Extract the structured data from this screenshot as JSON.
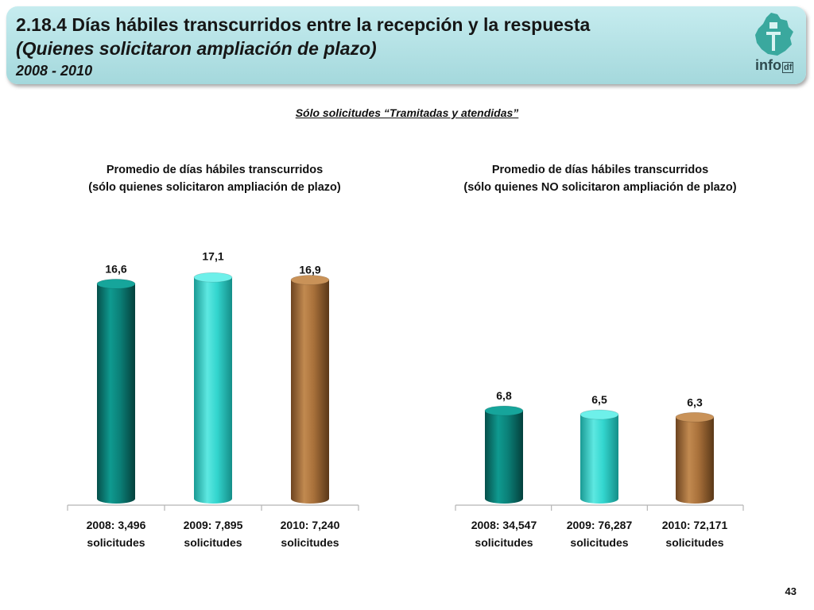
{
  "header": {
    "title": "2.18.4 Días hábiles transcurridos entre la recepción y la respuesta",
    "subtitle": "(Quienes solicitaron ampliación de plazo)",
    "range": "2008 - 2010",
    "logo_text": "info",
    "logo_suffix": "df"
  },
  "section_subtitle": "Sólo solicitudes “Tramitadas y atendidas”",
  "page_number": "43",
  "colors": {
    "teal_dark": "#0b8078",
    "teal_light": "#33d6cf",
    "brown": "#a8703a"
  },
  "chart_data": [
    {
      "type": "bar",
      "title_line1": "Promedio de días hábiles transcurridos",
      "title_line2": "(sólo quienes solicitaron ampliación de plazo)",
      "categories": [
        [
          "2008: 3,496",
          "solicitudes"
        ],
        [
          "2009: 7,895",
          "solicitudes"
        ],
        [
          "2010: 7,240",
          "solicitudes"
        ]
      ],
      "values": [
        16.6,
        17.1,
        16.9
      ],
      "value_labels": [
        "16,6",
        "17,1",
        "16,9"
      ]
    },
    {
      "type": "bar",
      "title_line1": "Promedio de días hábiles transcurridos",
      "title_line2": "(sólo quienes NO solicitaron ampliación de plazo)",
      "categories": [
        [
          "2008: 34,547",
          "solicitudes"
        ],
        [
          "2009: 76,287",
          "solicitudes"
        ],
        [
          "2010: 72,171",
          "solicitudes"
        ]
      ],
      "values": [
        6.8,
        6.5,
        6.3
      ],
      "value_labels": [
        "6,8",
        "6,5",
        "6,3"
      ]
    }
  ]
}
